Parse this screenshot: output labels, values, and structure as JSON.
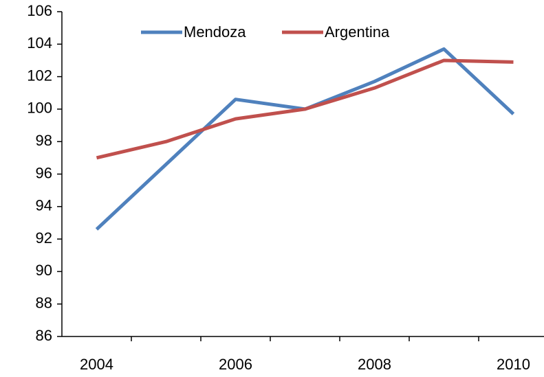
{
  "chart_data": {
    "type": "line",
    "categories": [
      "2004",
      null,
      "2006",
      null,
      "2008",
      null,
      "2010"
    ],
    "series": [
      {
        "name": "Mendoza",
        "color": "#4f81bd",
        "values": [
          92.6,
          96.6,
          100.6,
          100.0,
          101.7,
          103.7,
          99.7
        ]
      },
      {
        "name": "Argentina",
        "color": "#c0504d",
        "values": [
          97.0,
          98.0,
          99.4,
          100.0,
          101.3,
          103.0,
          102.9
        ]
      }
    ],
    "ylim": [
      86,
      106
    ],
    "yticks": [
      86,
      88,
      90,
      92,
      94,
      96,
      98,
      100,
      102,
      104,
      106
    ],
    "legend": "top"
  }
}
